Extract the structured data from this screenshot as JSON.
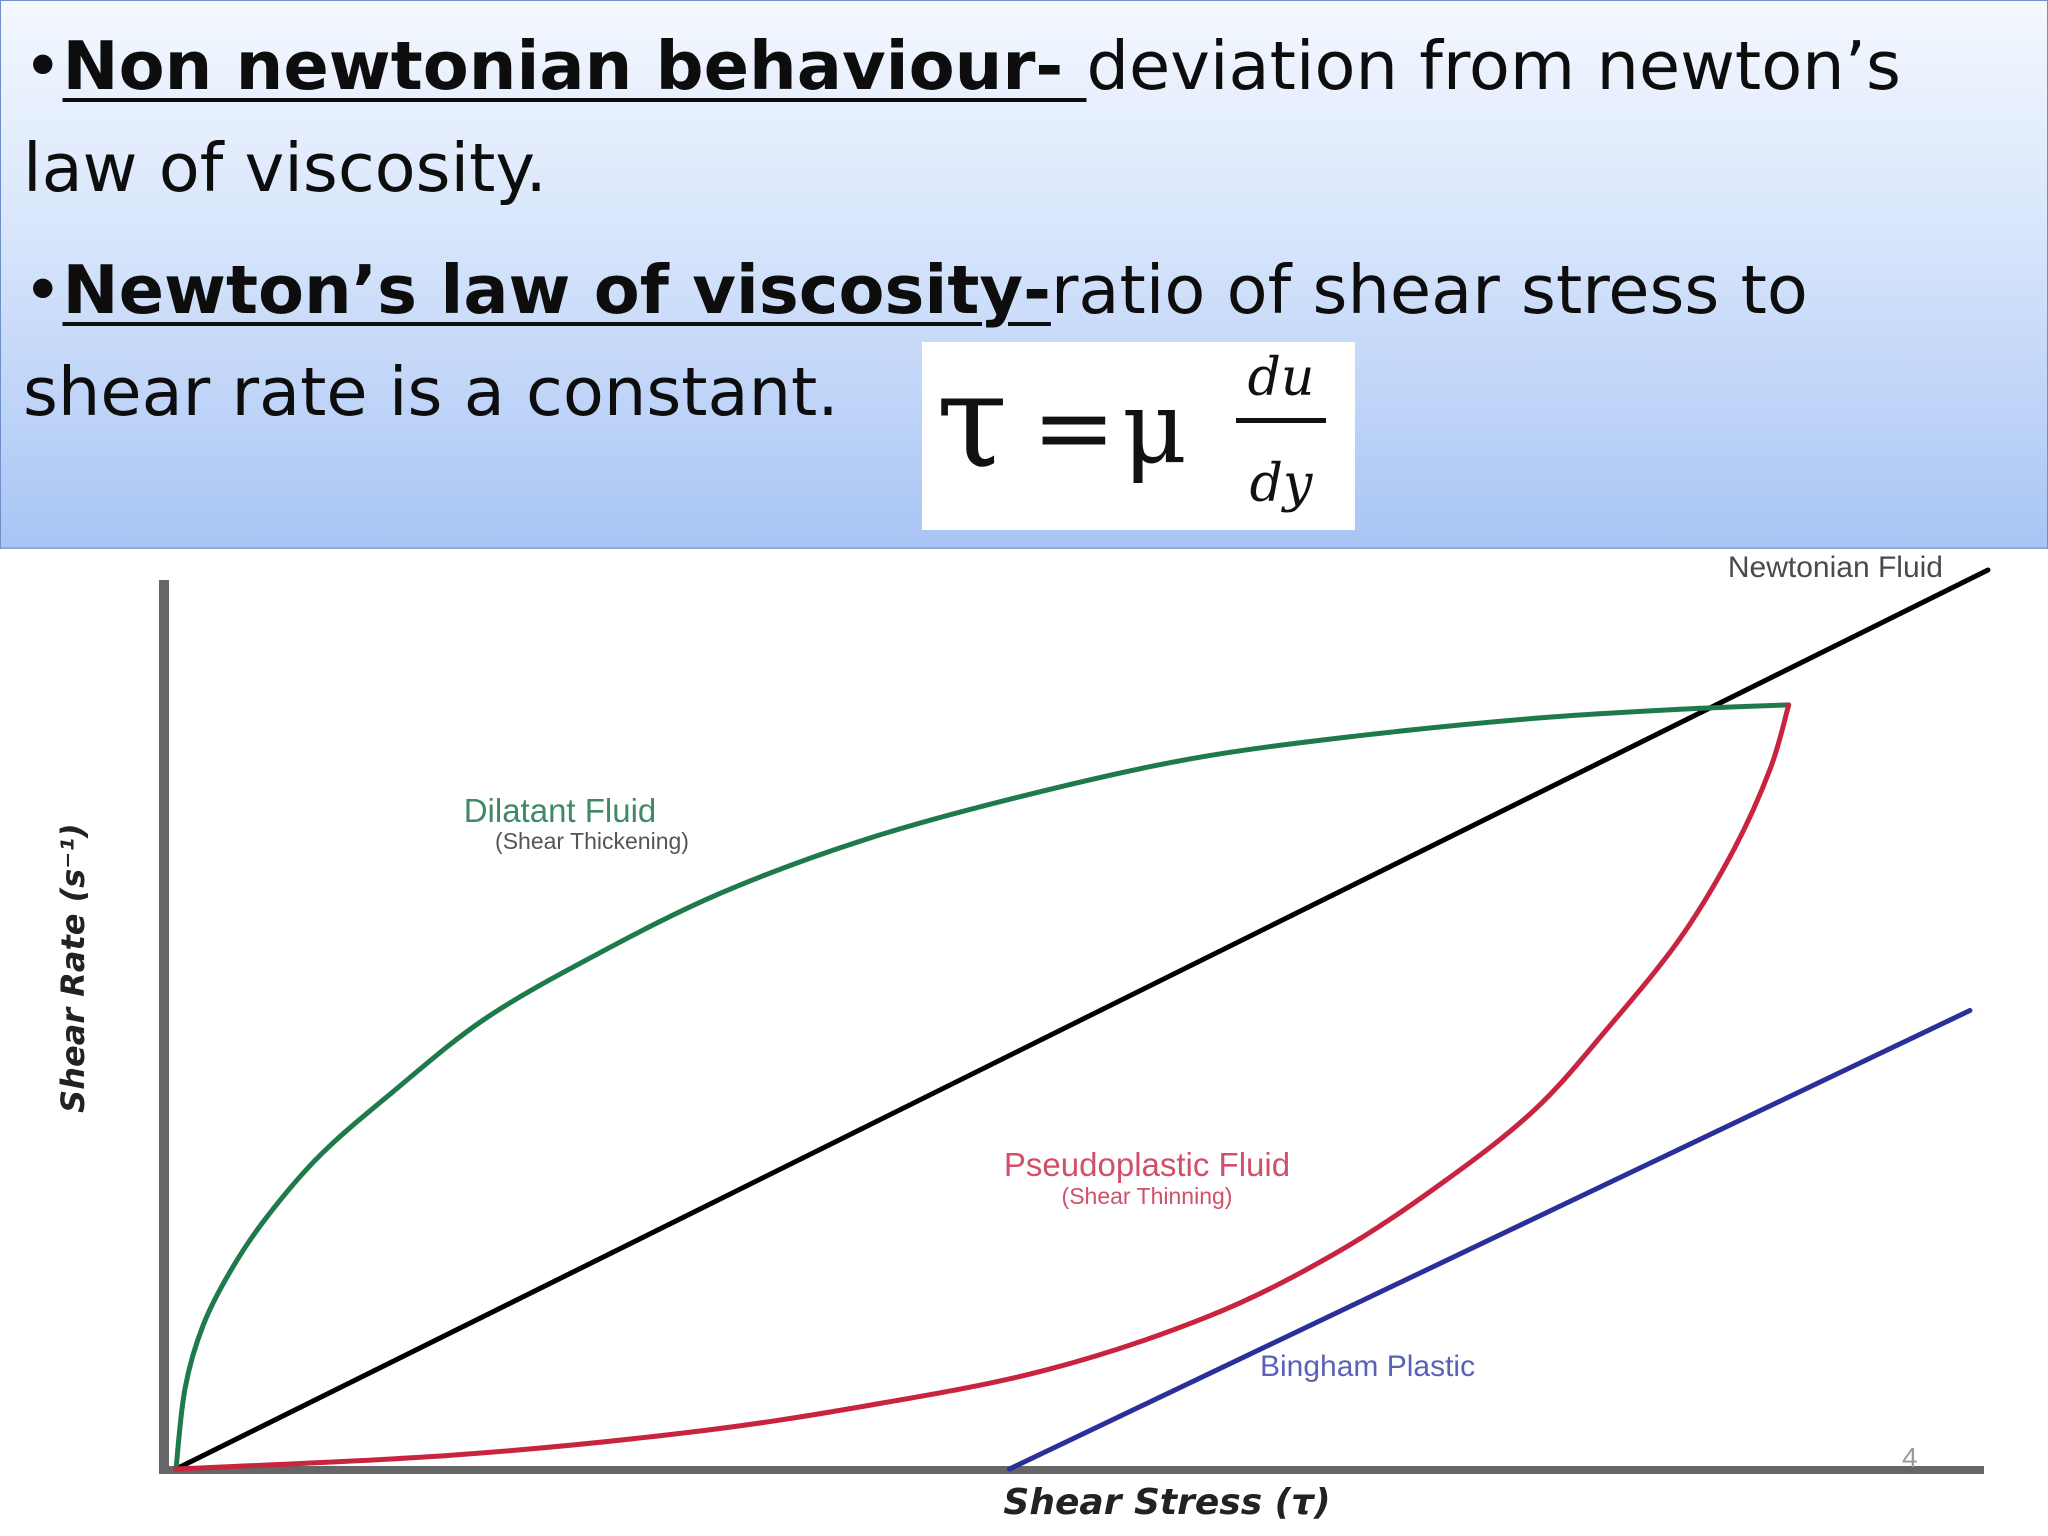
{
  "slide": {
    "bullet_1": {
      "marker": "•",
      "term": "Non newtonian behaviour- ",
      "text": "deviation from newton’s law of viscosity."
    },
    "bullet_2": {
      "marker": "•",
      "term": "Newton’s law of viscosity-",
      "text": "ratio of shear stress to shear rate is a constant."
    },
    "formula": {
      "lhs": "τ",
      "equals": "=",
      "coefficient": "μ",
      "numerator": "du",
      "denominator": "dy"
    },
    "page_number": "4"
  },
  "colors": {
    "header_gradient_top": "#f4f8fe",
    "header_gradient_bottom": "#a9c5f5",
    "newtonian": "#000000",
    "dilatant": "#1e7a4a",
    "pseudoplastic": "#c8243f",
    "bingham": "#2a2f9a",
    "axis": "#666666"
  },
  "chart_data": {
    "type": "line",
    "title": "",
    "xlabel": "Shear Stress (τ)",
    "ylabel": "Shear Rate (s⁻¹)",
    "xlim": [
      0,
      100
    ],
    "ylim": [
      0,
      100
    ],
    "grid": false,
    "ticks": false,
    "series": [
      {
        "name": "Newtonian Fluid",
        "color": "#000000",
        "points": [
          [
            0,
            0
          ],
          [
            100,
            100
          ]
        ]
      },
      {
        "name": "Dilatant Fluid",
        "sublabel": "(Shear Thickening)",
        "color": "#1e7a4a",
        "points": [
          [
            0,
            0
          ],
          [
            0.5,
            9
          ],
          [
            1.5,
            16
          ],
          [
            3,
            22
          ],
          [
            5,
            28
          ],
          [
            8,
            35
          ],
          [
            12,
            42
          ],
          [
            17,
            50
          ],
          [
            23,
            57
          ],
          [
            30,
            64
          ],
          [
            38,
            70
          ],
          [
            47,
            75
          ],
          [
            56,
            79
          ],
          [
            65,
            81.5
          ],
          [
            75,
            83.5
          ],
          [
            83,
            84.5
          ],
          [
            89,
            85
          ]
        ]
      },
      {
        "name": "Pseudoplastic Fluid",
        "sublabel": "(Shear Thinning)",
        "color": "#c8243f",
        "points": [
          [
            0,
            0
          ],
          [
            15,
            1.5
          ],
          [
            28,
            4
          ],
          [
            38,
            7
          ],
          [
            48,
            11
          ],
          [
            57,
            17
          ],
          [
            64,
            24
          ],
          [
            70,
            32
          ],
          [
            75,
            40
          ],
          [
            79,
            49
          ],
          [
            83,
            59
          ],
          [
            86,
            69
          ],
          [
            88,
            78
          ],
          [
            89,
            85
          ]
        ]
      },
      {
        "name": "Bingham Plastic",
        "color": "#2a2f9a",
        "points": [
          [
            46,
            0
          ],
          [
            99,
            51
          ]
        ]
      }
    ],
    "annotations": [
      {
        "text": "Newtonian Fluid",
        "series": "Newtonian Fluid"
      },
      {
        "text": "Dilatant Fluid",
        "series": "Dilatant Fluid"
      },
      {
        "text": "(Shear Thickening)",
        "series": "Dilatant Fluid"
      },
      {
        "text": "Pseudoplastic Fluid",
        "series": "Pseudoplastic Fluid"
      },
      {
        "text": "(Shear Thinning)",
        "series": "Pseudoplastic Fluid"
      },
      {
        "text": "Bingham Plastic",
        "series": "Bingham Plastic"
      }
    ]
  }
}
